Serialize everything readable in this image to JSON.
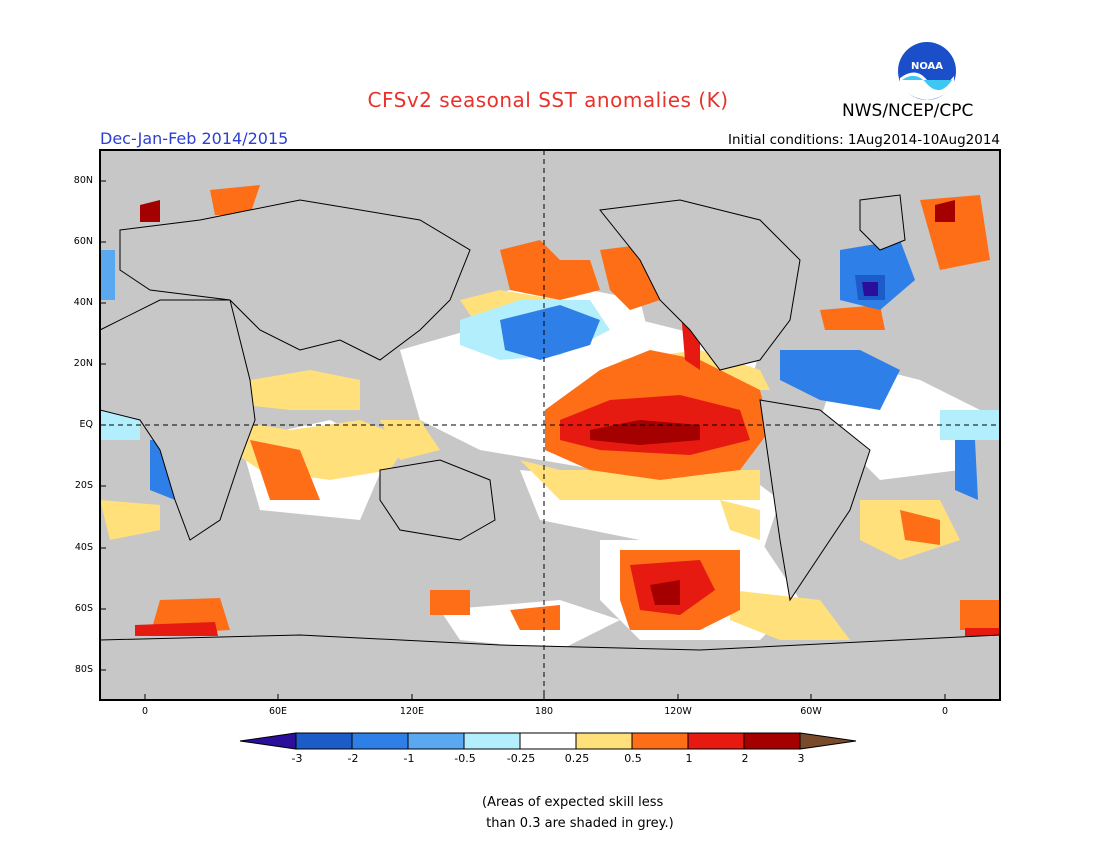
{
  "header": {
    "title": "CFSv2 seasonal SST anomalies (K)",
    "agency": "NWS/NCEP/CPC",
    "logo_text": "NOAA",
    "season": "Dec-Jan-Feb 2014/2015",
    "initial_conditions": "Initial conditions: 1Aug2014-10Aug2014"
  },
  "axes": {
    "lat_labels": [
      "80N",
      "60N",
      "40N",
      "20N",
      "EQ",
      "20S",
      "40S",
      "60S",
      "80S"
    ],
    "lon_labels": [
      "0",
      "60E",
      "120E",
      "180",
      "120W",
      "60W",
      "0"
    ]
  },
  "colorbar": {
    "labels": [
      "-3",
      "-2",
      "-1",
      "-0.5",
      "-0.25",
      "0.25",
      "0.5",
      "1",
      "2",
      "3"
    ],
    "colors": [
      "#2b0f9b",
      "#1c5cc8",
      "#2f7fe8",
      "#5aa9f0",
      "#b3eefc",
      "#ffffff",
      "#ffe07a",
      "#fd6e17",
      "#e61a10",
      "#a50000",
      "#7a4b2b"
    ]
  },
  "map_colors": {
    "land": "#c7c7c7",
    "low_skill": "#c7c7c7",
    "coast": "#000000"
  },
  "note": "(Areas of expected skill less\n than 0.3 are shaded in grey.)"
}
